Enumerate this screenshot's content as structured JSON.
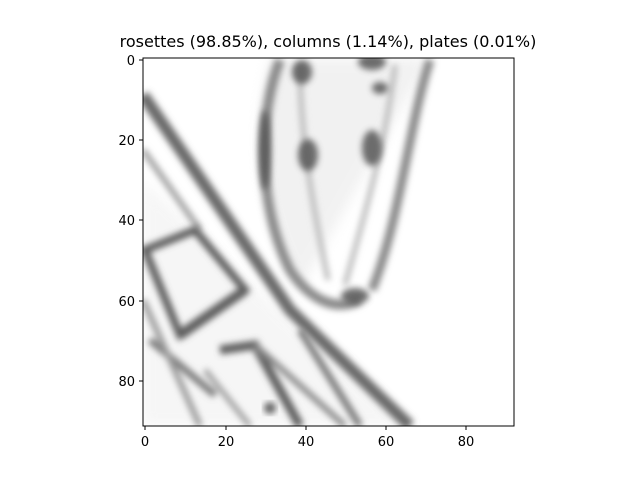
{
  "title": "rosettes (98.85%), columns (1.14%), plates (0.01%)",
  "image": {
    "kind": "grayscale-sample-thumbnail",
    "subject": "crystal-rosette",
    "colormap": "gray-inverted",
    "x_range": [
      0,
      91
    ],
    "y_range": [
      0,
      91
    ]
  },
  "axes": {
    "x_ticks": [
      "0",
      "20",
      "40",
      "60",
      "80"
    ],
    "y_ticks": [
      "0",
      "20",
      "40",
      "60",
      "80"
    ],
    "x_tick_values": [
      0,
      20,
      40,
      60,
      80
    ],
    "y_tick_values": [
      0,
      20,
      40,
      60,
      80
    ]
  },
  "colors": {
    "frame": "#000000",
    "background": "#ffffff",
    "ink": "#333333"
  }
}
